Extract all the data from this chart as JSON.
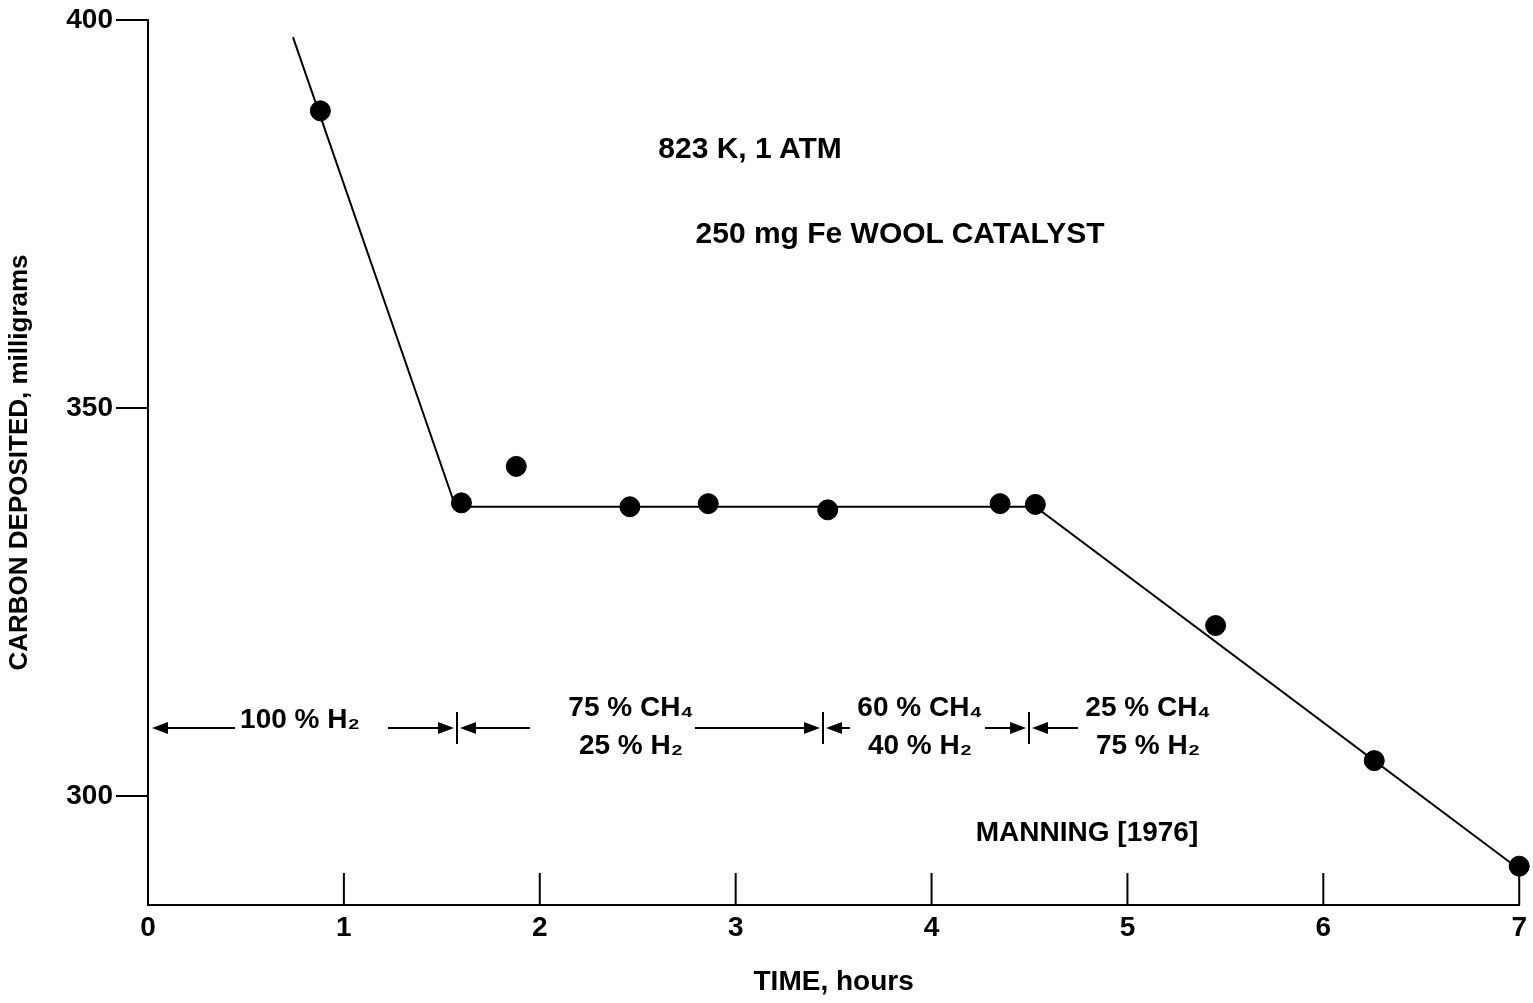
{
  "chart_data": {
    "type": "scatter",
    "xlabel": "TIME, hours",
    "ylabel": "CARBON DEPOSITED, milligrams",
    "xlim": [
      0,
      7
    ],
    "xticks": [
      0,
      1,
      2,
      3,
      4,
      5,
      6,
      7
    ],
    "ylim": [
      286,
      400
    ],
    "yticks": [
      300,
      350,
      400
    ],
    "grid": false,
    "legend": false,
    "marker": "circle",
    "series": [
      {
        "type": "scatter",
        "color": "#000000",
        "x": [
          0.88,
          1.6,
          1.88,
          2.46,
          2.86,
          3.47,
          4.35,
          4.53,
          5.45,
          6.26,
          7.0
        ],
        "values": [
          388.3,
          337.8,
          342.5,
          337.3,
          337.7,
          336.9,
          337.7,
          337.6,
          322.0,
          304.6,
          291.0
        ]
      },
      {
        "type": "line",
        "color": "#000000",
        "marker": "none",
        "x": [
          0.74,
          1.57,
          4.53,
          7.0
        ],
        "values": [
          397.8,
          337.3,
          337.3,
          290.6
        ]
      }
    ],
    "annotations": [
      "823 K, 1 ATM",
      "250 mg Fe WOOL CATALYST",
      "MANNING [1976]",
      "100 % H₂",
      "75 % CH₄",
      "25 % H₂",
      "60 % CH₄",
      "40 % H₂",
      "25 % CH₄",
      "75 % H₂"
    ]
  }
}
